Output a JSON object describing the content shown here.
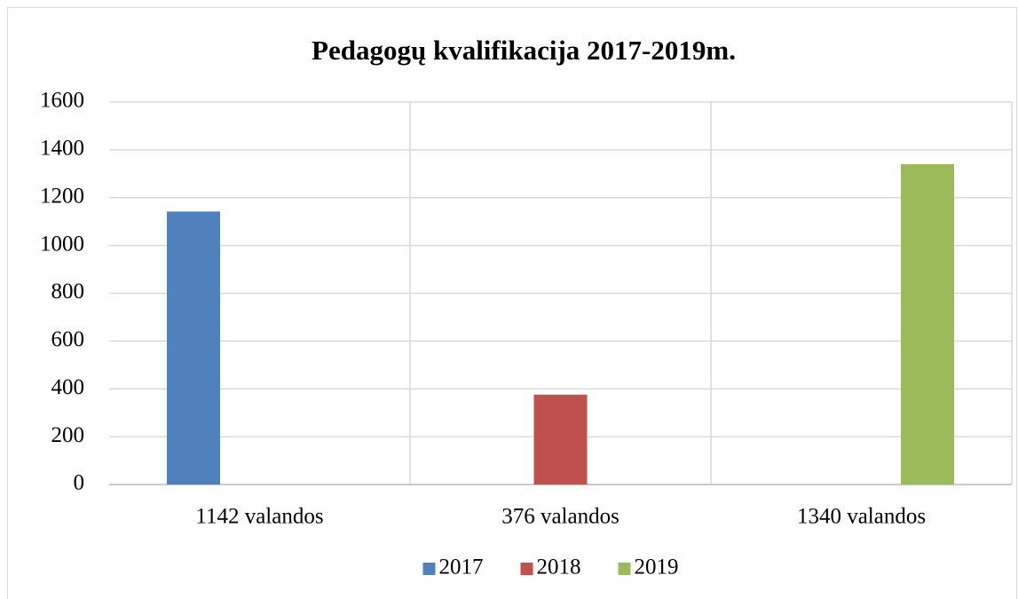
{
  "chart_data": {
    "type": "bar",
    "title": "Pedagogų kvalifikacija 2017-2019m.",
    "categories": [
      "1142 valandos",
      "376 valandos",
      "1340 valandos"
    ],
    "series": [
      {
        "name": "2017",
        "color": "#4f81bd",
        "values": [
          1142,
          null,
          null
        ]
      },
      {
        "name": "2018",
        "color": "#c0504d",
        "values": [
          null,
          376,
          null
        ]
      },
      {
        "name": "2019",
        "color": "#9bbb59",
        "values": [
          null,
          null,
          1340
        ]
      }
    ],
    "ylim": [
      0,
      1600
    ],
    "yticks": [
      0,
      200,
      400,
      600,
      800,
      1000,
      1200,
      1400,
      1600
    ],
    "grid": true,
    "legend": "bottom"
  }
}
